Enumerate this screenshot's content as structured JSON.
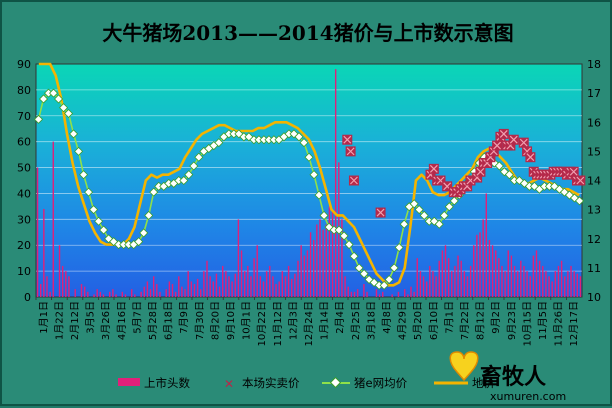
{
  "chart_data": {
    "type": "combo",
    "title": "大牛猪场2013——2014猪价与上市数示意图",
    "y_left": {
      "min": 0,
      "max": 90,
      "ticks": [
        0,
        10,
        20,
        30,
        40,
        50,
        60,
        70,
        80,
        90
      ]
    },
    "y_right": {
      "min": 10,
      "max": 18,
      "ticks": [
        10,
        11,
        12,
        13,
        14,
        15,
        16,
        17,
        18
      ]
    },
    "x_tick_labels": [
      "1月1日",
      "1月22日",
      "2月12日",
      "3月5日",
      "3月26日",
      "4月16日",
      "5月7日",
      "5月28日",
      "6月18日",
      "7月9日",
      "7月30日",
      "8月20日",
      "9月10日",
      "10月1日",
      "10月22日",
      "11月12日",
      "12月3日",
      "12月24日",
      "1月14日",
      "2月4日",
      "2月25日",
      "3月18日",
      "4月8日",
      "4月29日",
      "5月20日",
      "6月10日",
      "7月1日",
      "7月22日",
      "8月12日",
      "9月2日",
      "9月23日",
      "10月15日",
      "11月5日",
      "11月26日",
      "12月17日"
    ],
    "series": [
      {
        "name": "上市头数",
        "kind": "bar",
        "axis": "left",
        "color": "#e0207a",
        "values": [
          50,
          5,
          34,
          8,
          2,
          60,
          0,
          20,
          12,
          10,
          8,
          0,
          3,
          0,
          5,
          4,
          2,
          0,
          1,
          3,
          2,
          1,
          0,
          2,
          3,
          1,
          0,
          2,
          1,
          0,
          3,
          1,
          0,
          2,
          4,
          6,
          3,
          8,
          5,
          2,
          0,
          3,
          6,
          5,
          2,
          8,
          4,
          3,
          10,
          6,
          5,
          7,
          3,
          10,
          14,
          8,
          6,
          9,
          4,
          12,
          10,
          8,
          6,
          9,
          30,
          18,
          10,
          12,
          8,
          15,
          20,
          8,
          6,
          10,
          12,
          8,
          5,
          6,
          10,
          8,
          12,
          7,
          9,
          14,
          20,
          16,
          18,
          25,
          22,
          28,
          30,
          26,
          28,
          35,
          33,
          88,
          52,
          30,
          8,
          4,
          2,
          2,
          3,
          0,
          5,
          2,
          0,
          0,
          3,
          1,
          2,
          0,
          0,
          1,
          0,
          2,
          0,
          3,
          1,
          4,
          2,
          15,
          10,
          8,
          6,
          12,
          10,
          8,
          14,
          18,
          20,
          15,
          10,
          12,
          16,
          14,
          10,
          8,
          12,
          20,
          24,
          25,
          30,
          40,
          22,
          20,
          18,
          15,
          12,
          10,
          18,
          16,
          12,
          10,
          14,
          12,
          10,
          8,
          16,
          18,
          14,
          12,
          10,
          8,
          6,
          10,
          12,
          14,
          8,
          10,
          12,
          10,
          9,
          8
        ]
      },
      {
        "name": "本场实卖价",
        "kind": "marker",
        "axis": "right",
        "color": "#b5294a",
        "values": [
          null,
          null,
          null,
          null,
          null,
          null,
          null,
          null,
          null,
          null,
          null,
          null,
          null,
          null,
          null,
          null,
          null,
          null,
          null,
          null,
          null,
          null,
          null,
          null,
          null,
          null,
          null,
          null,
          null,
          null,
          null,
          null,
          null,
          null,
          null,
          null,
          null,
          null,
          null,
          null,
          null,
          null,
          null,
          null,
          null,
          null,
          null,
          null,
          null,
          null,
          null,
          null,
          null,
          null,
          null,
          null,
          null,
          null,
          null,
          null,
          null,
          null,
          null,
          null,
          null,
          null,
          null,
          null,
          null,
          null,
          null,
          null,
          null,
          null,
          null,
          null,
          null,
          null,
          null,
          null,
          null,
          null,
          null,
          null,
          null,
          null,
          null,
          null,
          null,
          null,
          null,
          null,
          null,
          15.4,
          15.0,
          14.0,
          null,
          null,
          null,
          null,
          null,
          null,
          null,
          12.9,
          null,
          null,
          null,
          null,
          null,
          null,
          null,
          null,
          null,
          null,
          null,
          null,
          null,
          null,
          14.2,
          14.4,
          14.0,
          14.0,
          null,
          13.8,
          null,
          13.6,
          13.6,
          13.7,
          13.8,
          13.8,
          14.0,
          null,
          14.1,
          14.3,
          14.6,
          14.6,
          14.8,
          15.0,
          15.2,
          15.5,
          15.6,
          15.2,
          15.2,
          15.4,
          null,
          null,
          15.3,
          15.0,
          14.8,
          14.3,
          14.2,
          14.2,
          14.2,
          14.2,
          14.2,
          14.3,
          14.3,
          14.3,
          14.3,
          14.2,
          14.3,
          14.3,
          14.0,
          14.0
        ]
      },
      {
        "name": "猪e网均价",
        "kind": "line",
        "axis": "right",
        "color": "#8fe04a",
        "values": [
          16.1,
          16.8,
          17.0,
          17.0,
          16.8,
          16.5,
          16.3,
          15.6,
          15.0,
          14.2,
          13.6,
          13.0,
          12.6,
          12.3,
          12.0,
          11.9,
          11.8,
          11.8,
          11.8,
          11.8,
          11.9,
          12.2,
          12.8,
          13.6,
          13.8,
          13.8,
          13.9,
          13.9,
          14.0,
          14.0,
          14.2,
          14.5,
          14.8,
          15.0,
          15.1,
          15.2,
          15.3,
          15.5,
          15.6,
          15.6,
          15.6,
          15.5,
          15.5,
          15.4,
          15.4,
          15.4,
          15.4,
          15.4,
          15.4,
          15.5,
          15.6,
          15.6,
          15.5,
          15.3,
          14.8,
          14.2,
          13.5,
          12.8,
          12.4,
          12.3,
          12.3,
          12.1,
          11.8,
          11.4,
          11.0,
          10.8,
          10.6,
          10.5,
          10.4,
          10.4,
          10.6,
          11.0,
          11.7,
          12.5,
          13.1,
          13.2,
          13.0,
          12.8,
          12.6,
          12.6,
          12.5,
          12.8,
          13.1,
          13.3,
          13.5,
          13.8,
          14.0,
          14.3,
          14.6,
          14.8,
          14.8,
          14.6,
          14.5,
          14.3,
          14.2,
          14.0,
          14.0,
          13.9,
          13.8,
          13.8,
          13.7,
          13.8,
          13.8,
          13.8,
          13.7,
          13.6,
          13.5,
          13.4,
          13.3
        ]
      },
      {
        "name": "地价",
        "kind": "line",
        "axis": "right",
        "color": "#f4b400",
        "values": [
          18.0,
          18.0,
          18.0,
          17.6,
          16.8,
          15.6,
          14.6,
          13.8,
          13.2,
          12.6,
          12.2,
          11.9,
          11.8,
          11.8,
          11.8,
          11.8,
          12.0,
          12.4,
          13.2,
          14.0,
          14.2,
          14.1,
          14.2,
          14.2,
          14.3,
          14.4,
          14.8,
          15.1,
          15.4,
          15.6,
          15.7,
          15.8,
          15.9,
          15.9,
          15.8,
          15.7,
          15.7,
          15.7,
          15.7,
          15.8,
          15.8,
          15.9,
          16.0,
          16.0,
          16.0,
          15.9,
          15.8,
          15.6,
          15.4,
          15.0,
          14.4,
          13.7,
          13.0,
          12.8,
          12.8,
          12.6,
          12.4,
          12.0,
          11.6,
          11.2,
          10.8,
          10.6,
          10.4,
          10.4,
          10.5,
          11.0,
          12.4,
          14.0,
          14.2,
          14.0,
          13.6,
          13.5,
          13.5,
          13.6,
          13.8,
          14.0,
          14.2,
          14.4,
          14.8,
          15.0,
          15.1,
          15.0,
          14.8,
          14.6,
          14.3,
          14.0,
          13.9,
          13.9,
          14.0,
          14.1,
          14.0,
          13.9,
          13.8,
          13.7,
          13.7,
          13.6,
          13.5
        ]
      }
    ]
  },
  "legend": [
    {
      "name": "上市头数",
      "symbol": "bar"
    },
    {
      "name": "本场实卖价",
      "symbol": "x"
    },
    {
      "name": "猪e网均价",
      "symbol": "diamond-line"
    },
    {
      "name": "地价",
      "symbol": "line"
    }
  ],
  "watermark": {
    "logo_text": "畜牧人",
    "url": "xumuren.com"
  }
}
